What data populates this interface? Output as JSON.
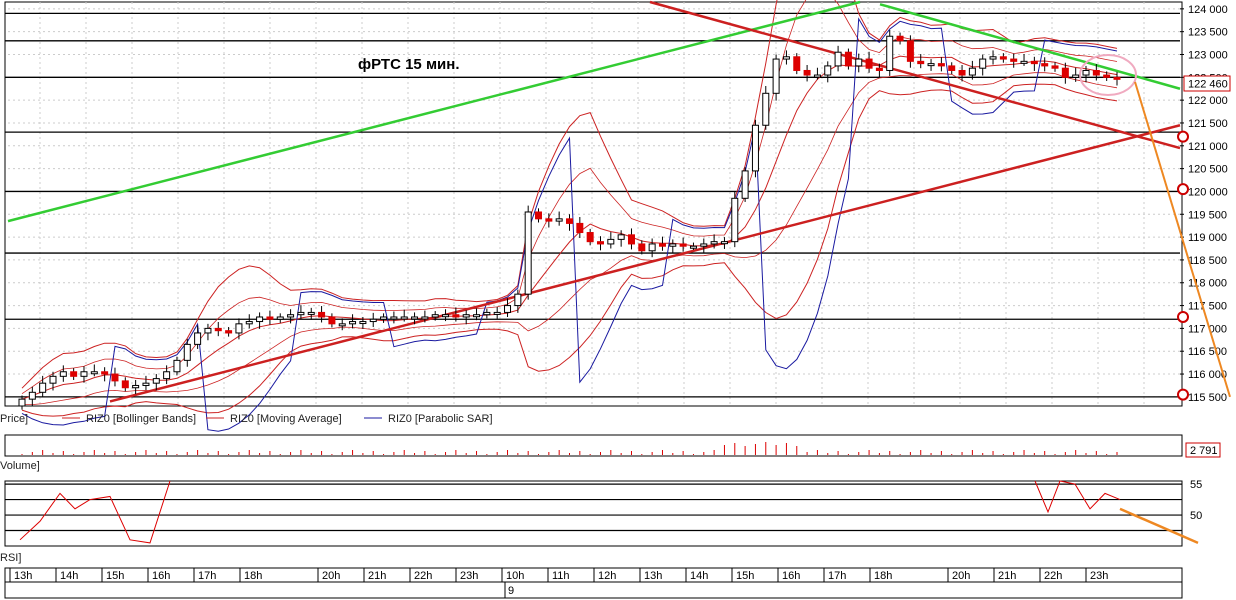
{
  "chart_data": [
    {
      "type": "candlestick",
      "annotation": "фРТС   15 мин.",
      "ylim": [
        115300,
        124150
      ],
      "y_ticks": [
        "124 000",
        "123 500",
        "123 000",
        "122 500",
        "122 000",
        "121 500",
        "121 000",
        "120 500",
        "120 000",
        "119 500",
        "119 000",
        "118 500",
        "118 000",
        "117 500",
        "117 000",
        "116 500",
        "116 000",
        "115 500"
      ],
      "y_tick_values": [
        124000,
        123500,
        123000,
        122500,
        122000,
        121500,
        121000,
        120500,
        120000,
        119500,
        119000,
        118500,
        118000,
        117500,
        117000,
        116500,
        116000,
        115500
      ],
      "last_price_label": "122 460",
      "last_price": 122460,
      "legend": [
        "Price]",
        "RIZ0 [Bollinger Bands]",
        "RIZ0 [Moving Average]",
        "RIZ0 [Parabolic SAR]"
      ],
      "horizontal_levels": [
        123900,
        123300,
        122500,
        121300,
        120000,
        118650,
        117200,
        115500
      ],
      "close": [
        115450,
        115600,
        115800,
        115950,
        116050,
        115950,
        116050,
        116050,
        116000,
        115850,
        115700,
        115750,
        115800,
        115900,
        116050,
        116300,
        116650,
        116900,
        117000,
        116950,
        116900,
        117100,
        117150,
        117250,
        117200,
        117250,
        117300,
        117350,
        117350,
        117250,
        117100,
        117100,
        117150,
        117150,
        117200,
        117250,
        117250,
        117250,
        117250,
        117250,
        117300,
        117300,
        117250,
        117300,
        117300,
        117350,
        117350,
        117500,
        117750,
        119550,
        119400,
        119350,
        119400,
        119300,
        119100,
        118900,
        118850,
        118950,
        119050,
        118850,
        118700,
        118850,
        118800,
        118850,
        118800,
        118800,
        118850,
        118900,
        118900,
        119850,
        120450,
        121450,
        122150,
        122900,
        122950,
        122650,
        122550,
        122550,
        122750,
        123050,
        122750,
        122900,
        122700,
        122650,
        123400,
        123300,
        122850,
        122800,
        122800,
        122750,
        122650,
        122550,
        122700,
        122900,
        122950,
        122900,
        122850,
        122850,
        122800,
        122750,
        122700,
        122500,
        122550,
        122650,
        122550,
        122500,
        122460
      ],
      "open": [
        115300,
        115450,
        115600,
        115800,
        115950,
        116050,
        115950,
        116050,
        116050,
        116000,
        115850,
        115700,
        115750,
        115800,
        115900,
        116050,
        116300,
        116650,
        116900,
        117000,
        116950,
        116900,
        117100,
        117150,
        117250,
        117200,
        117250,
        117300,
        117350,
        117350,
        117250,
        117100,
        117100,
        117150,
        117150,
        117200,
        117250,
        117250,
        117250,
        117250,
        117250,
        117300,
        117300,
        117250,
        117300,
        117300,
        117350,
        117350,
        117500,
        117750,
        119550,
        119400,
        119350,
        119400,
        119300,
        119100,
        118900,
        118850,
        118950,
        119050,
        118850,
        118700,
        118850,
        118800,
        118850,
        118800,
        118800,
        118850,
        118900,
        118900,
        119850,
        120450,
        121450,
        122150,
        122900,
        122950,
        122650,
        122550,
        122550,
        122750,
        123050,
        122750,
        122900,
        122700,
        122650,
        123400,
        123300,
        122850,
        122800,
        122800,
        122750,
        122650,
        122550,
        122700,
        122900,
        122950,
        122900,
        122850,
        122850,
        122800,
        122750,
        122700,
        122500,
        122550,
        122650,
        122550,
        122500
      ],
      "volume_label": "2 791",
      "pane_label": "Volume]"
    },
    {
      "type": "line",
      "pane_label": "RSI]",
      "y_ticks": [
        "55",
        "50"
      ],
      "y_tick_values": [
        55,
        50
      ],
      "ylim": [
        45,
        55.5
      ]
    }
  ],
  "x_axis": {
    "labels": [
      "13h",
      "14h",
      "15h",
      "16h",
      "17h",
      "18h",
      "20h",
      "21h",
      "22h",
      "23h",
      "10h",
      "11h",
      "12h",
      "13h",
      "14h",
      "15h",
      "16h",
      "17h",
      "18h",
      "20h",
      "21h",
      "22h",
      "23h"
    ],
    "date_label": "9"
  },
  "colors": {
    "bull": "#ffffff",
    "bear": "#dd0000",
    "band": "#cc2222",
    "sar": "#1a1aa0",
    "trend_green": "#33cc33",
    "trend_red": "#cc2020",
    "projection": "#ee8822",
    "grid": "#cccccc"
  }
}
